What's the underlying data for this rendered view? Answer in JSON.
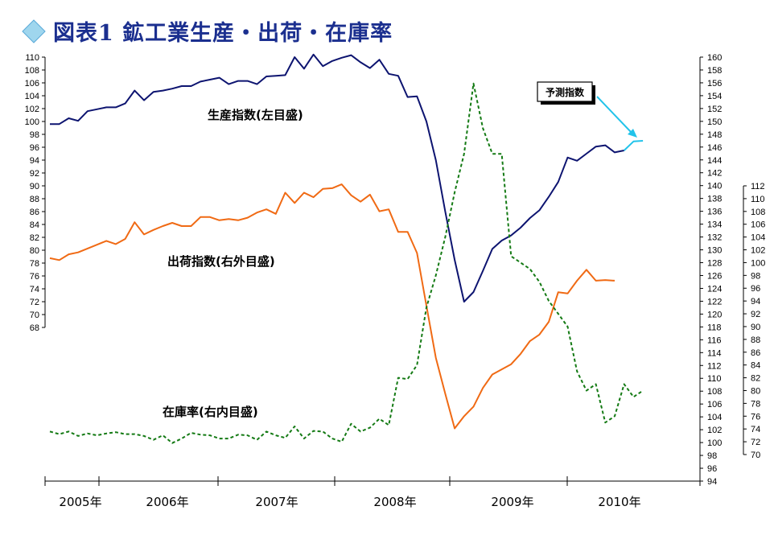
{
  "chart_data": {
    "type": "line",
    "title": "図表1 鉱工業生産・出荷・在庫率",
    "x_axis": {
      "tick_labels": [
        "2005年",
        "2006年",
        "2007年",
        "2008年",
        "2009年",
        "2010年"
      ]
    },
    "y_axes": {
      "left": {
        "min": 68,
        "max": 110,
        "step": 2
      },
      "right_outer": {
        "min": 94,
        "max": 160,
        "step": 2
      },
      "right_inner": {
        "min": 70,
        "max": 112,
        "step": 2
      }
    },
    "series": [
      {
        "name": "生産指数(左目盛)",
        "axis": "left",
        "color": "#0d1470",
        "style": "solid",
        "values": [
          99.6,
          99.6,
          100.5,
          100.1,
          101.6,
          101.9,
          102.2,
          102.2,
          102.8,
          104.8,
          103.3,
          104.6,
          104.8,
          105.1,
          105.5,
          105.5,
          106.2,
          106.5,
          106.8,
          105.8,
          106.3,
          106.3,
          105.8,
          107.0,
          107.1,
          107.2,
          110.0,
          108.2,
          110.4,
          108.6,
          109.4,
          109.9,
          110.3,
          109.2,
          108.3,
          109.6,
          107.4,
          107.1,
          103.8,
          103.9,
          100.0,
          94.0,
          86.0,
          78.5,
          72.0,
          73.5,
          76.8,
          80.2,
          81.5,
          82.3,
          83.5,
          85.0,
          86.2,
          88.3,
          90.6,
          94.4,
          93.9,
          95.0,
          96.1,
          96.3,
          95.2,
          95.5
        ]
      },
      {
        "name": "出荷指数(右外目盛)",
        "axis": "right_outer",
        "color": "#f06a14",
        "style": "solid",
        "values": [
          128.7,
          128.4,
          129.3,
          129.6,
          130.2,
          130.8,
          131.4,
          130.9,
          131.7,
          134.3,
          132.4,
          133.1,
          133.7,
          134.2,
          133.7,
          133.7,
          135.1,
          135.1,
          134.6,
          134.8,
          134.6,
          135.0,
          135.8,
          136.3,
          135.6,
          138.9,
          137.3,
          138.9,
          138.2,
          139.5,
          139.6,
          140.2,
          138.5,
          137.5,
          138.6,
          136.0,
          136.3,
          132.8,
          132.8,
          129.5,
          121.3,
          113.2,
          107.6,
          102.2,
          104.1,
          105.6,
          108.5,
          110.6,
          111.4,
          112.2,
          113.8,
          115.8,
          116.8,
          118.8,
          123.4,
          123.2,
          125.2,
          126.9,
          125.2,
          125.3,
          125.2
        ]
      },
      {
        "name": "在庫率(右内目盛)",
        "axis": "right_inner",
        "color": "#147a14",
        "style": "dashed",
        "values": [
          73.6,
          73.2,
          73.6,
          72.9,
          73.3,
          73.0,
          73.3,
          73.5,
          73.2,
          73.2,
          72.9,
          72.3,
          73.0,
          71.8,
          72.5,
          73.4,
          73.1,
          73.0,
          72.5,
          72.5,
          73.1,
          73.0,
          72.3,
          73.6,
          73.0,
          72.6,
          74.4,
          72.5,
          73.7,
          73.6,
          72.5,
          72.0,
          74.8,
          73.6,
          74.2,
          75.6,
          74.6,
          82.0,
          81.8,
          84.0,
          93.0,
          98.0,
          104.0,
          111.0,
          117.0,
          128.0,
          121.0,
          117.0,
          117.0,
          101.0,
          100.0,
          99.0,
          97.0,
          94.0,
          92.0,
          90.0,
          83.0,
          80.0,
          81.0,
          75.0,
          76.0,
          81.0,
          79.0,
          80.0
        ]
      },
      {
        "name": "予測指数",
        "axis": "left",
        "color": "#22c3ea",
        "style": "solid",
        "start_index": 61,
        "values": [
          95.5,
          96.9,
          97.0
        ]
      }
    ],
    "annotations": [
      {
        "text": "生産指数(左目盛)"
      },
      {
        "text": "出荷指数(右外目盛)"
      },
      {
        "text": "在庫率(右内目盛)"
      },
      {
        "text": "予測指数"
      }
    ]
  },
  "colors": {
    "title": "#1b2f8f",
    "production": "#0d1470",
    "shipments": "#f06a14",
    "inventory": "#147a14",
    "forecast": "#22c3ea"
  }
}
